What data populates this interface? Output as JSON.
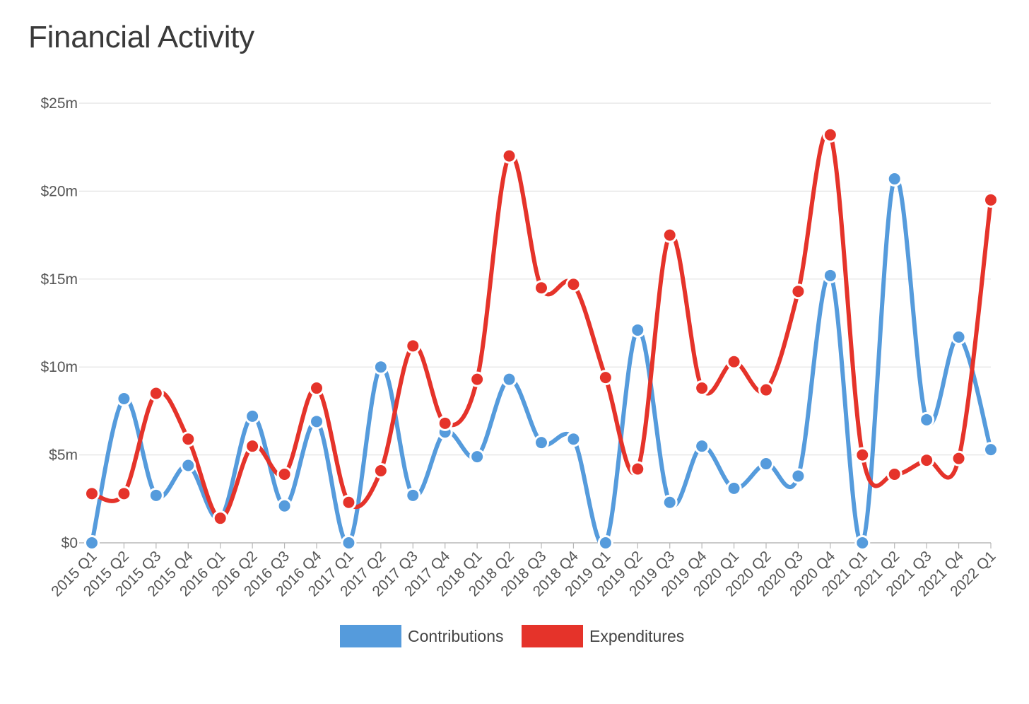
{
  "page": {
    "title": "Financial Activity"
  },
  "chart_data": {
    "type": "line",
    "title": "Financial Activity",
    "xlabel": "",
    "ylabel": "",
    "ylim": [
      0,
      25
    ],
    "y_ticks": [
      0,
      5,
      10,
      15,
      20,
      25
    ],
    "y_tick_labels": [
      "$0",
      "$5m",
      "$10m",
      "$15m",
      "$20m",
      "$25m"
    ],
    "y_unit": "millions of dollars",
    "grid": true,
    "legend_position": "bottom",
    "categories": [
      "2015 Q1",
      "2015 Q2",
      "2015 Q3",
      "2015 Q4",
      "2016 Q1",
      "2016 Q2",
      "2016 Q3",
      "2016 Q4",
      "2017 Q1",
      "2017 Q2",
      "2017 Q3",
      "2017 Q4",
      "2018 Q1",
      "2018 Q2",
      "2018 Q3",
      "2018 Q4",
      "2019 Q1",
      "2019 Q2",
      "2019 Q3",
      "2019 Q4",
      "2020 Q1",
      "2020 Q2",
      "2020 Q3",
      "2020 Q4",
      "2021 Q1",
      "2021 Q2",
      "2021 Q3",
      "2021 Q4",
      "2022 Q1"
    ],
    "series": [
      {
        "name": "Contributions",
        "color": "#559bdc",
        "values": [
          0,
          8.2,
          2.7,
          4.4,
          1.4,
          7.2,
          2.1,
          6.9,
          0,
          10.0,
          2.7,
          6.3,
          4.9,
          9.3,
          5.7,
          5.9,
          0,
          12.1,
          2.3,
          5.5,
          3.1,
          4.5,
          3.8,
          15.2,
          0,
          20.7,
          7.0,
          11.7,
          5.3
        ]
      },
      {
        "name": "Expenditures",
        "color": "#e5332a",
        "values": [
          2.8,
          2.8,
          8.5,
          5.9,
          1.4,
          5.5,
          3.9,
          8.8,
          2.3,
          4.1,
          11.2,
          6.8,
          9.3,
          22.0,
          14.5,
          14.7,
          9.4,
          4.2,
          17.5,
          8.8,
          10.3,
          8.7,
          14.3,
          23.2,
          5.0,
          3.9,
          4.7,
          4.8,
          19.5
        ]
      }
    ]
  }
}
